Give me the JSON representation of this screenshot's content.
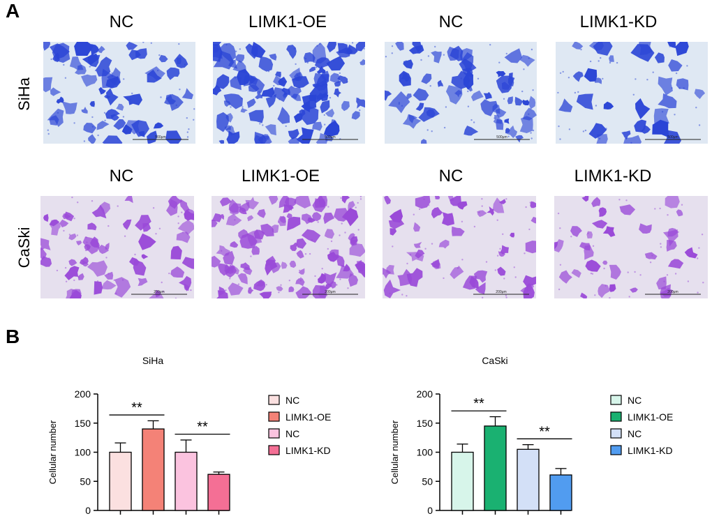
{
  "panel_a": {
    "letter": "A",
    "rows": [
      {
        "label": "SiHa",
        "cols": [
          "NC",
          "LIMK1-OE",
          "NC",
          "LIMK1-KD"
        ],
        "stain": "#2b45d6",
        "bg": "#dfe8f3",
        "scale_text": "500μm"
      },
      {
        "label": "CaSki",
        "cols": [
          "NC",
          "LIMK1-OE",
          "NC",
          "LIMK1-KD"
        ],
        "stain": "#9a4ad8",
        "bg": "#e6e0ee",
        "scale_text": "200μm"
      }
    ]
  },
  "panel_b": {
    "letter": "B"
  },
  "chart_data": [
    {
      "type": "bar",
      "title": "SiHa",
      "ylabel": "Cellular number",
      "ylim": [
        0,
        200
      ],
      "yticks": [
        0,
        50,
        100,
        150,
        200
      ],
      "categories": [
        "NC",
        "LIMK1-OE",
        "NC",
        "LIMK1-KD"
      ],
      "values": [
        100,
        140,
        100,
        62
      ],
      "errors": [
        16,
        14,
        21,
        4
      ],
      "colors": [
        "#fbe0e0",
        "#f48277",
        "#fbc3df",
        "#f46f95"
      ],
      "legend": [
        "NC",
        "LIMK1-OE",
        "NC",
        "LIMK1-KD"
      ],
      "significance": [
        {
          "pair": [
            0,
            1
          ],
          "label": "**"
        },
        {
          "pair": [
            2,
            3
          ],
          "label": "**"
        }
      ]
    },
    {
      "type": "bar",
      "title": "CaSki",
      "ylabel": "Cellular number",
      "ylim": [
        0,
        200
      ],
      "yticks": [
        0,
        50,
        100,
        150,
        200
      ],
      "categories": [
        "NC",
        "LIMK1-OE",
        "NC",
        "LIMK1-KD"
      ],
      "values": [
        100,
        145,
        105,
        61
      ],
      "errors": [
        14,
        16,
        8,
        11
      ],
      "colors": [
        "#d7f5ea",
        "#1ab171",
        "#d3e0f7",
        "#519cf0"
      ],
      "legend": [
        "NC",
        "LIMK1-OE",
        "NC",
        "LIMK1-KD"
      ],
      "significance": [
        {
          "pair": [
            0,
            1
          ],
          "label": "**"
        },
        {
          "pair": [
            2,
            3
          ],
          "label": "**"
        }
      ]
    }
  ]
}
